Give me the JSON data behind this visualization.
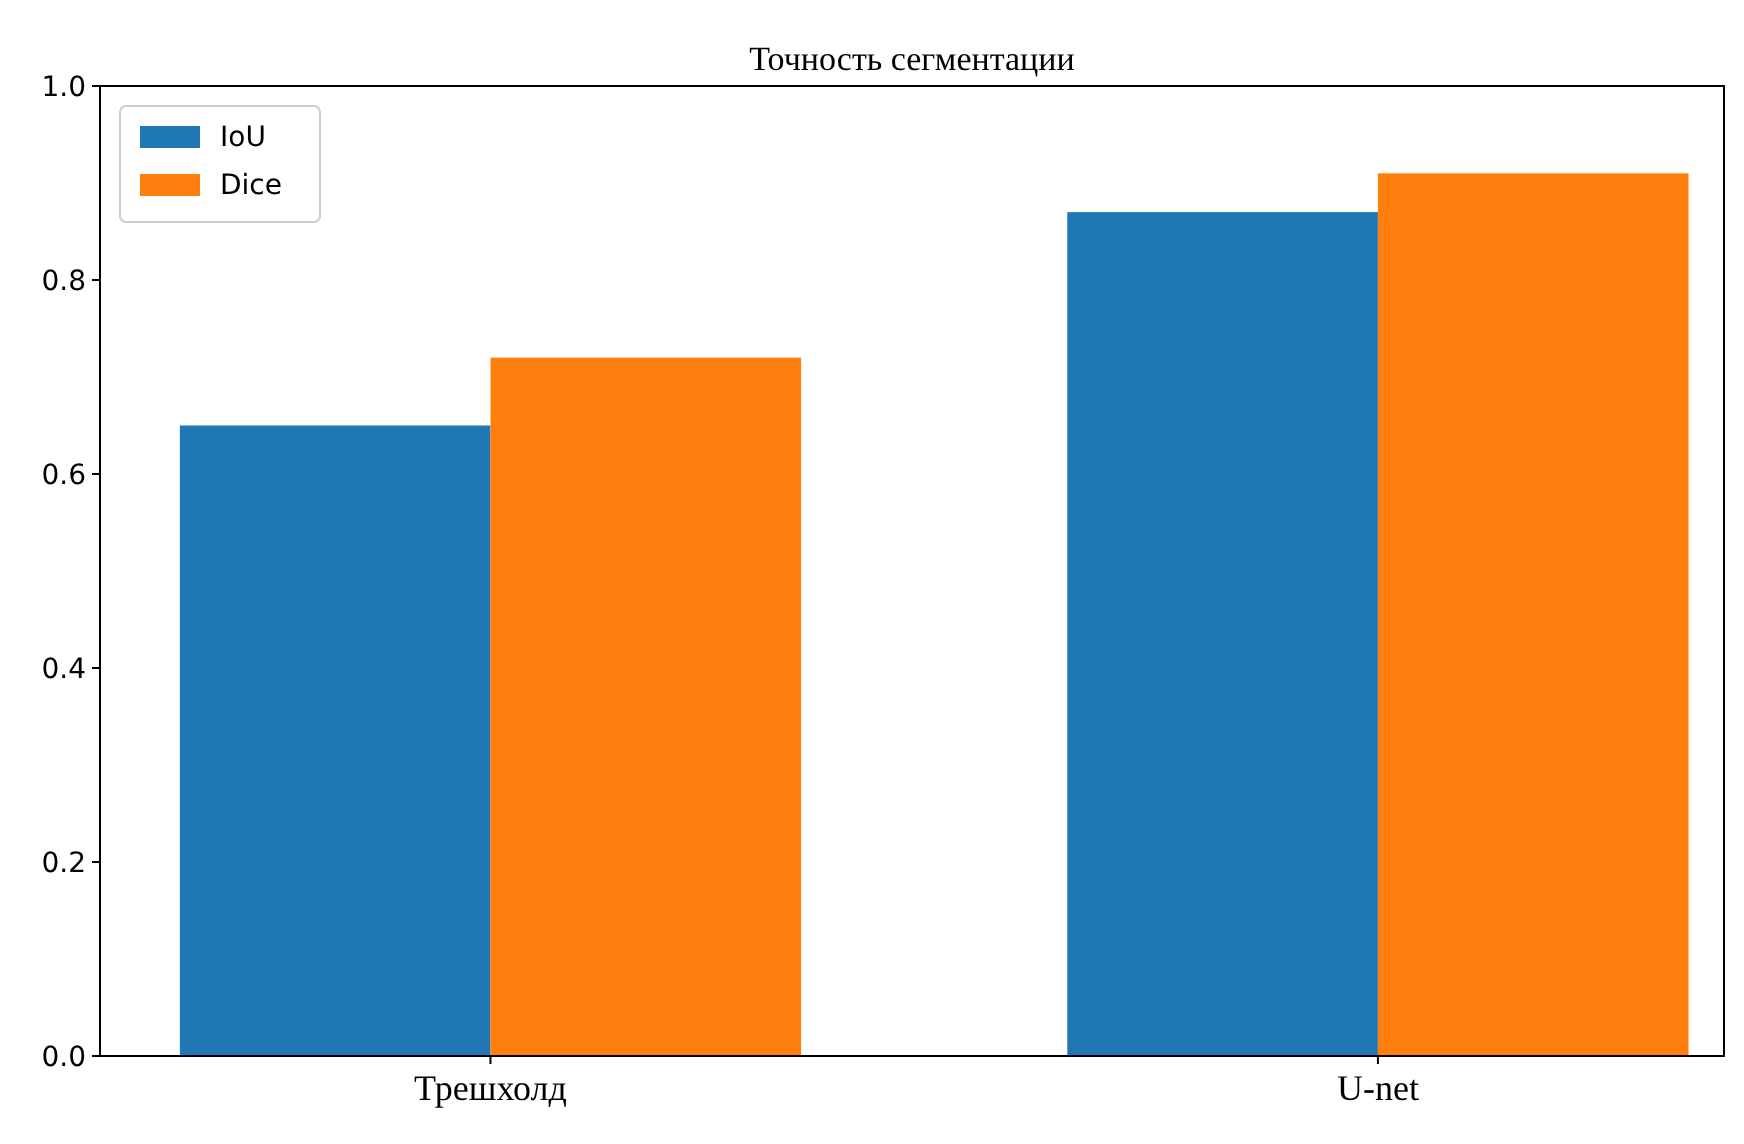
{
  "chart_data": {
    "type": "bar",
    "title": "Точность сегментации",
    "categories": [
      "Трешхолд",
      "U-net"
    ],
    "series": [
      {
        "name": "IoU",
        "color": "#1f77b4",
        "values": [
          0.65,
          0.87
        ]
      },
      {
        "name": "Dice",
        "color": "#ff7f0e",
        "values": [
          0.72,
          0.91
        ]
      }
    ],
    "ylim": [
      0,
      1
    ],
    "yticks": [
      {
        "value": 0,
        "label": "0.0"
      },
      {
        "value": 0.2,
        "label": "0.2"
      },
      {
        "value": 0.4,
        "label": "0.4"
      },
      {
        "value": 0.6,
        "label": "0.6"
      },
      {
        "value": 0.8,
        "label": "0.8"
      },
      {
        "value": 1,
        "label": "1.0"
      }
    ],
    "grid": false,
    "legend": "top left"
  }
}
